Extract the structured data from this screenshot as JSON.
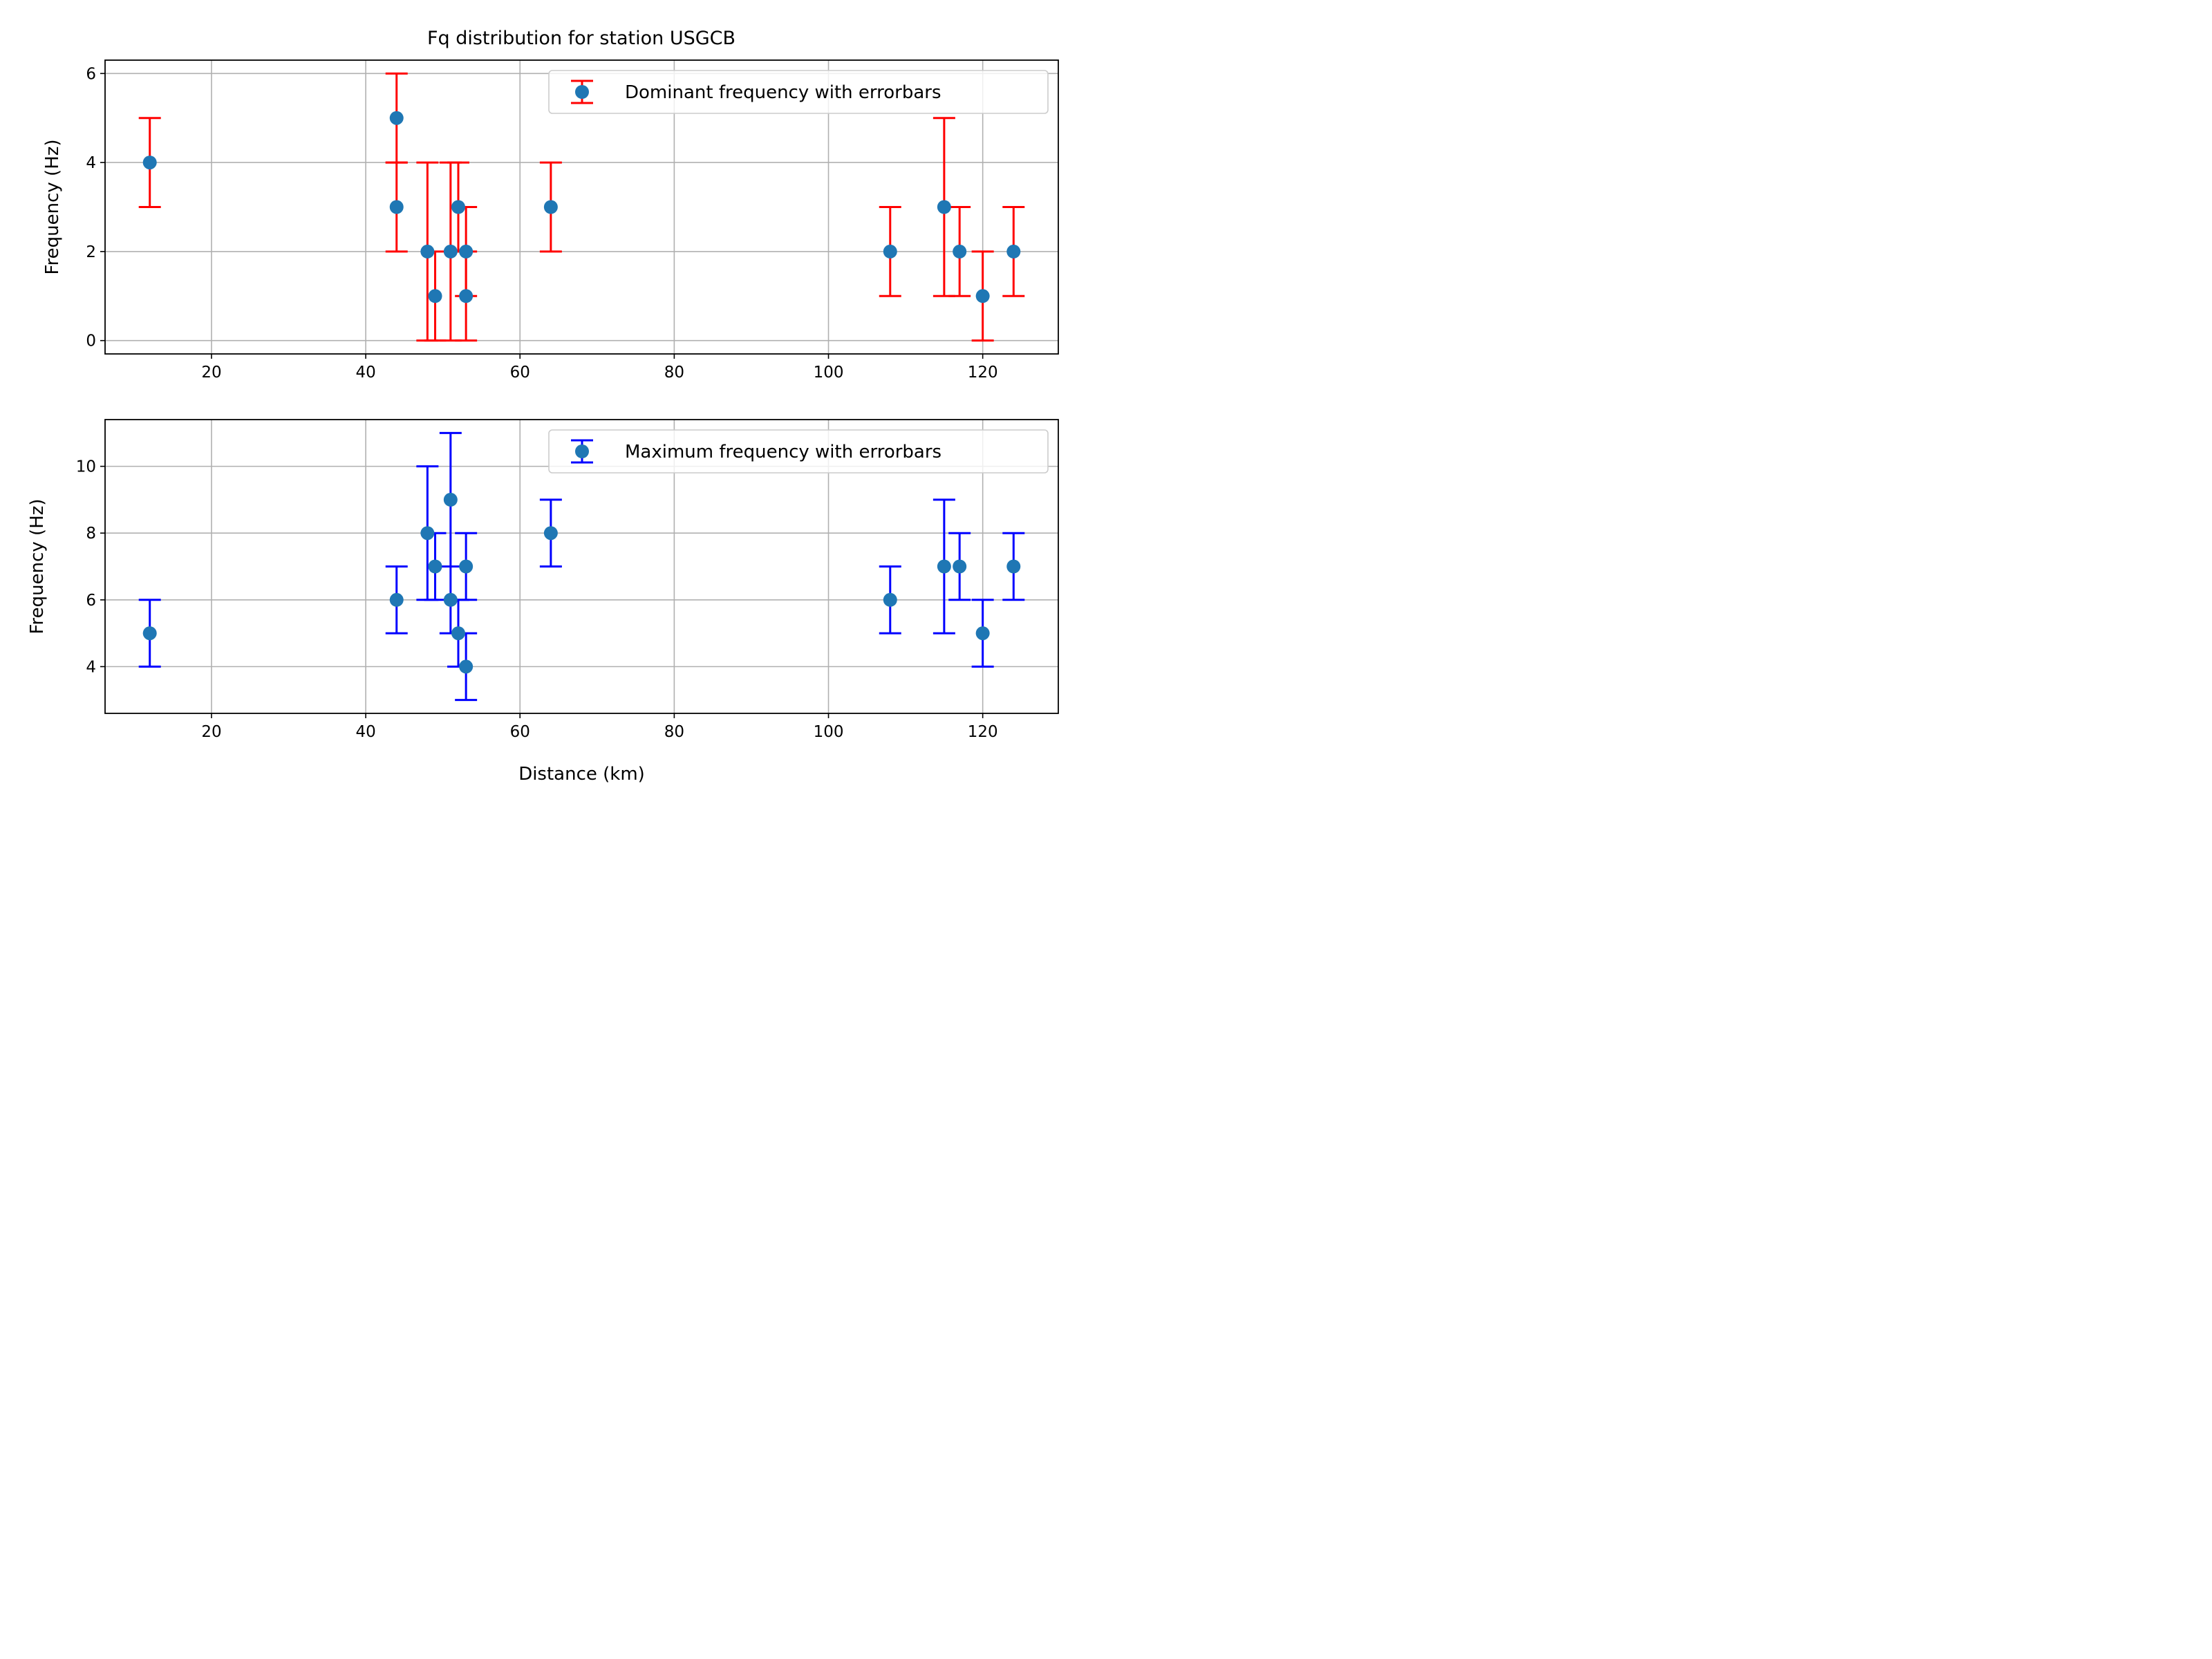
{
  "figure_title": "Fq distribution for station USGCB",
  "chart_data": [
    {
      "type": "scatter",
      "title": "Fq distribution for station USGCB",
      "xlabel": "",
      "ylabel": "Frequency (Hz)",
      "xlim": [
        6.2,
        129.8
      ],
      "ylim": [
        -0.3,
        6.3
      ],
      "xticks": [
        20,
        40,
        60,
        80,
        100,
        120
      ],
      "yticks": [
        0,
        2,
        4,
        6
      ],
      "grid": true,
      "legend": {
        "placement": "top-right",
        "entries": [
          "Dominant frequency with errorbars"
        ]
      },
      "series": [
        {
          "name": "Dominant frequency with errorbars",
          "marker_color": "#1f77b4",
          "errorbar_color": "#ff0000",
          "points": [
            {
              "x": 12,
              "y": 4,
              "low": 3,
              "high": 5
            },
            {
              "x": 44,
              "y": 5,
              "low": 4,
              "high": 6
            },
            {
              "x": 44,
              "y": 3,
              "low": 2,
              "high": 4
            },
            {
              "x": 48,
              "y": 2,
              "low": 0,
              "high": 4
            },
            {
              "x": 49,
              "y": 1,
              "low": 0,
              "high": 2
            },
            {
              "x": 51,
              "y": 2,
              "low": 0,
              "high": 4
            },
            {
              "x": 52,
              "y": 3,
              "low": 2,
              "high": 4
            },
            {
              "x": 53,
              "y": 2,
              "low": 1,
              "high": 3
            },
            {
              "x": 53,
              "y": 1,
              "low": 0,
              "high": 2
            },
            {
              "x": 64,
              "y": 3,
              "low": 2,
              "high": 4
            },
            {
              "x": 108,
              "y": 2,
              "low": 1,
              "high": 3
            },
            {
              "x": 115,
              "y": 3,
              "low": 1,
              "high": 5
            },
            {
              "x": 117,
              "y": 2,
              "low": 1,
              "high": 3
            },
            {
              "x": 120,
              "y": 1,
              "low": 0,
              "high": 2
            },
            {
              "x": 124,
              "y": 2,
              "low": 1,
              "high": 3
            }
          ]
        }
      ]
    },
    {
      "type": "scatter",
      "title": "",
      "xlabel": "Distance (km)",
      "ylabel": "Frequency (Hz)",
      "xlim": [
        6.2,
        129.8
      ],
      "ylim": [
        2.6,
        11.4
      ],
      "xticks": [
        20,
        40,
        60,
        80,
        100,
        120
      ],
      "yticks": [
        4,
        6,
        8,
        10
      ],
      "grid": true,
      "legend": {
        "placement": "top-right",
        "entries": [
          "Maximum frequency with errorbars"
        ]
      },
      "series": [
        {
          "name": "Maximum frequency with errorbars",
          "marker_color": "#1f77b4",
          "errorbar_color": "#0000ff",
          "points": [
            {
              "x": 12,
              "y": 5,
              "low": 4,
              "high": 6
            },
            {
              "x": 44,
              "y": 6,
              "low": 5,
              "high": 7
            },
            {
              "x": 48,
              "y": 8,
              "low": 6,
              "high": 10
            },
            {
              "x": 49,
              "y": 7,
              "low": 6,
              "high": 8
            },
            {
              "x": 51,
              "y": 9,
              "low": 7,
              "high": 11
            },
            {
              "x": 51,
              "y": 6,
              "low": 5,
              "high": 7
            },
            {
              "x": 52,
              "y": 5,
              "low": 4,
              "high": 6
            },
            {
              "x": 53,
              "y": 7,
              "low": 6,
              "high": 8
            },
            {
              "x": 53,
              "y": 4,
              "low": 3,
              "high": 5
            },
            {
              "x": 64,
              "y": 8,
              "low": 7,
              "high": 9
            },
            {
              "x": 108,
              "y": 6,
              "low": 5,
              "high": 7
            },
            {
              "x": 115,
              "y": 7,
              "low": 5,
              "high": 9
            },
            {
              "x": 117,
              "y": 7,
              "low": 6,
              "high": 8
            },
            {
              "x": 120,
              "y": 5,
              "low": 4,
              "high": 6
            },
            {
              "x": 124,
              "y": 7,
              "low": 6,
              "high": 8
            }
          ]
        }
      ]
    }
  ]
}
